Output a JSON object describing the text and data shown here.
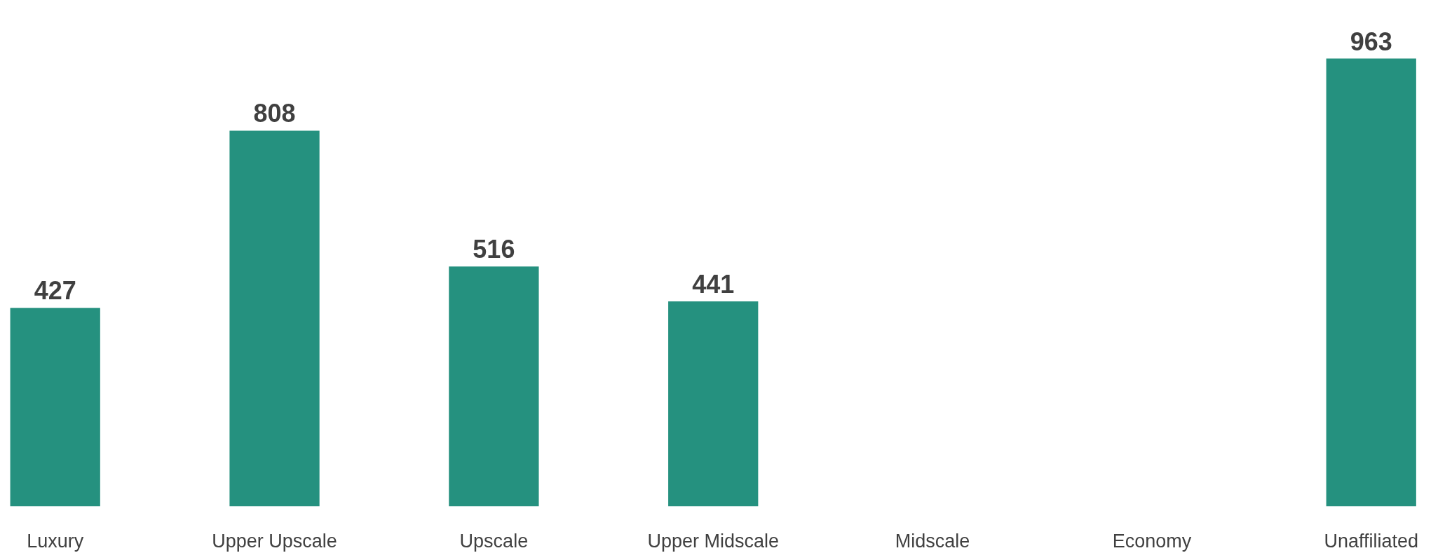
{
  "chart_data": {
    "type": "bar",
    "categories": [
      "Luxury",
      "Upper Upscale",
      "Upscale",
      "Upper Midscale",
      "Midscale",
      "Economy",
      "Unaffiliated"
    ],
    "values": [
      427,
      808,
      516,
      441,
      null,
      null,
      963
    ],
    "color": "#25917f",
    "data_labels": true
  }
}
